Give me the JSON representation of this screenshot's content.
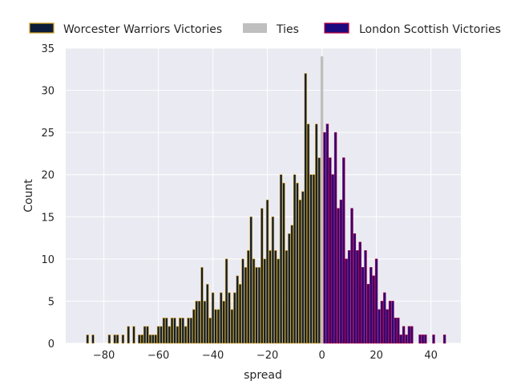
{
  "chart_data": {
    "type": "bar",
    "xlabel": "spread",
    "ylabel": "Count",
    "xlim": [
      -94,
      51
    ],
    "ylim": [
      0,
      35
    ],
    "x_ticks": [
      -80,
      -60,
      -40,
      -20,
      0,
      20,
      40
    ],
    "y_ticks": [
      0,
      5,
      10,
      15,
      20,
      25,
      30,
      35
    ],
    "grid": true,
    "legend_position": "top",
    "colors": {
      "background": "#eaeaf2",
      "grid": "#ffffff",
      "worcester_fill": "#0b1d3a",
      "worcester_edge": "#d4a017",
      "ties_fill": "#bfbfbf",
      "london_fill": "#1e0a80",
      "london_edge": "#c0003c"
    },
    "series": [
      {
        "name": "Worcester Warriors Victories",
        "points": [
          [
            -86,
            1
          ],
          [
            -84,
            1
          ],
          [
            -78,
            1
          ],
          [
            -76,
            1
          ],
          [
            -75,
            1
          ],
          [
            -73,
            1
          ],
          [
            -71,
            2
          ],
          [
            -69,
            2
          ],
          [
            -67,
            1
          ],
          [
            -66,
            1
          ],
          [
            -65,
            2
          ],
          [
            -64,
            2
          ],
          [
            -63,
            1
          ],
          [
            -62,
            1
          ],
          [
            -61,
            1
          ],
          [
            -60,
            2
          ],
          [
            -59,
            2
          ],
          [
            -58,
            3
          ],
          [
            -57,
            3
          ],
          [
            -56,
            2
          ],
          [
            -55,
            3
          ],
          [
            -54,
            3
          ],
          [
            -53,
            2
          ],
          [
            -52,
            3
          ],
          [
            -51,
            3
          ],
          [
            -50,
            2
          ],
          [
            -49,
            3
          ],
          [
            -48,
            3
          ],
          [
            -47,
            4
          ],
          [
            -46,
            5
          ],
          [
            -45,
            5
          ],
          [
            -44,
            9
          ],
          [
            -43,
            5
          ],
          [
            -42,
            7
          ],
          [
            -41,
            3
          ],
          [
            -40,
            6
          ],
          [
            -39,
            4
          ],
          [
            -38,
            4
          ],
          [
            -37,
            6
          ],
          [
            -36,
            5
          ],
          [
            -35,
            10
          ],
          [
            -34,
            6
          ],
          [
            -33,
            4
          ],
          [
            -32,
            6
          ],
          [
            -31,
            8
          ],
          [
            -30,
            7
          ],
          [
            -29,
            10
          ],
          [
            -28,
            9
          ],
          [
            -27,
            11
          ],
          [
            -26,
            15
          ],
          [
            -25,
            10
          ],
          [
            -24,
            9
          ],
          [
            -23,
            9
          ],
          [
            -22,
            16
          ],
          [
            -21,
            10
          ],
          [
            -20,
            17
          ],
          [
            -19,
            11
          ],
          [
            -18,
            15
          ],
          [
            -17,
            11
          ],
          [
            -16,
            10
          ],
          [
            -15,
            20
          ],
          [
            -14,
            19
          ],
          [
            -13,
            11
          ],
          [
            -12,
            13
          ],
          [
            -11,
            14
          ],
          [
            -10,
            20
          ],
          [
            -9,
            19
          ],
          [
            -8,
            17
          ],
          [
            -7,
            18
          ],
          [
            -6,
            32
          ],
          [
            -5,
            26
          ],
          [
            -4,
            20
          ],
          [
            -3,
            20
          ],
          [
            -2,
            26
          ],
          [
            -1,
            22
          ]
        ]
      },
      {
        "name": "Ties",
        "points": [
          [
            0,
            34
          ]
        ]
      },
      {
        "name": "London Scottish Victories",
        "points": [
          [
            1,
            25
          ],
          [
            2,
            26
          ],
          [
            3,
            22
          ],
          [
            4,
            20
          ],
          [
            5,
            25
          ],
          [
            6,
            16
          ],
          [
            7,
            17
          ],
          [
            8,
            22
          ],
          [
            9,
            10
          ],
          [
            10,
            11
          ],
          [
            11,
            16
          ],
          [
            12,
            13
          ],
          [
            13,
            11
          ],
          [
            14,
            12
          ],
          [
            15,
            9
          ],
          [
            16,
            11
          ],
          [
            17,
            7
          ],
          [
            18,
            9
          ],
          [
            19,
            8
          ],
          [
            20,
            10
          ],
          [
            21,
            4
          ],
          [
            22,
            5
          ],
          [
            23,
            6
          ],
          [
            24,
            4
          ],
          [
            25,
            5
          ],
          [
            26,
            5
          ],
          [
            27,
            3
          ],
          [
            28,
            3
          ],
          [
            29,
            1
          ],
          [
            30,
            2
          ],
          [
            31,
            1
          ],
          [
            32,
            2
          ],
          [
            33,
            2
          ],
          [
            36,
            1
          ],
          [
            37,
            1
          ],
          [
            38,
            1
          ],
          [
            41,
            1
          ],
          [
            45,
            1
          ]
        ]
      }
    ]
  }
}
